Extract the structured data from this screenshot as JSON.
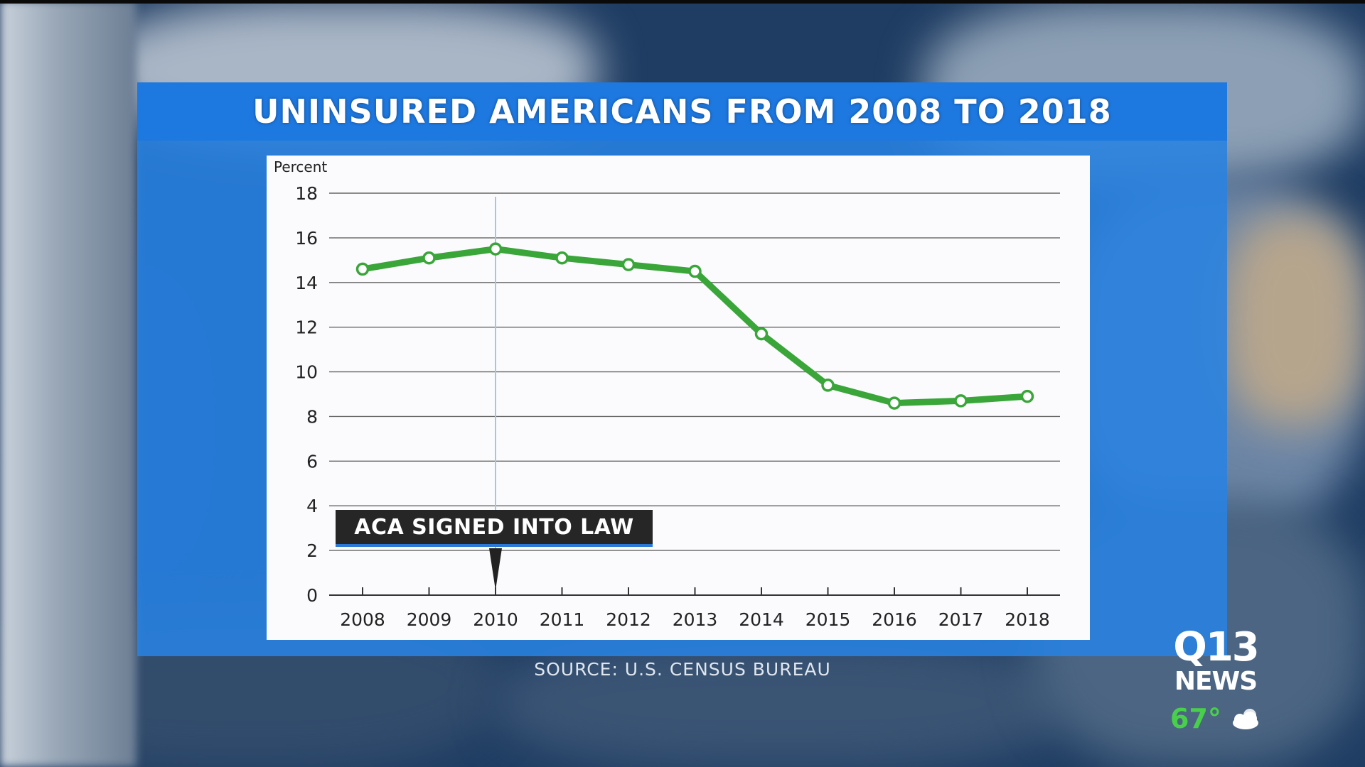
{
  "title": "UNINSURED AMERICANS FROM 2008 TO 2018",
  "callout": "ACA SIGNED INTO LAW",
  "source": "SOURCE: U.S. CENSUS BUREAU",
  "station": {
    "logo_top": "Q13",
    "logo_bottom": "NEWS",
    "temperature": "67°",
    "weather_icon": "partly-cloudy-icon"
  },
  "colors": {
    "line": "#3aa63a",
    "title_bar": "#1d78e0",
    "panel": "#2882e1",
    "grid": "#555555"
  },
  "chart_data": {
    "type": "line",
    "title": "UNINSURED AMERICANS FROM 2008 TO 2018",
    "ylabel": "Percent",
    "xlabel": "",
    "x": [
      2008,
      2009,
      2010,
      2011,
      2012,
      2013,
      2014,
      2015,
      2016,
      2017,
      2018
    ],
    "categories": [
      "2008",
      "2009",
      "2010",
      "2011",
      "2012",
      "2013",
      "2014",
      "2015",
      "2016",
      "2017",
      "2018"
    ],
    "yticks": [
      0,
      2,
      4,
      6,
      8,
      10,
      12,
      14,
      16,
      18
    ],
    "ylim": [
      0,
      18
    ],
    "grid": true,
    "series": [
      {
        "name": "Uninsured",
        "values": [
          14.6,
          15.1,
          15.5,
          15.1,
          14.8,
          14.5,
          11.7,
          9.4,
          8.6,
          8.7,
          8.9
        ]
      }
    ],
    "annotation": {
      "label": "ACA SIGNED INTO LAW",
      "x": 2010
    }
  }
}
